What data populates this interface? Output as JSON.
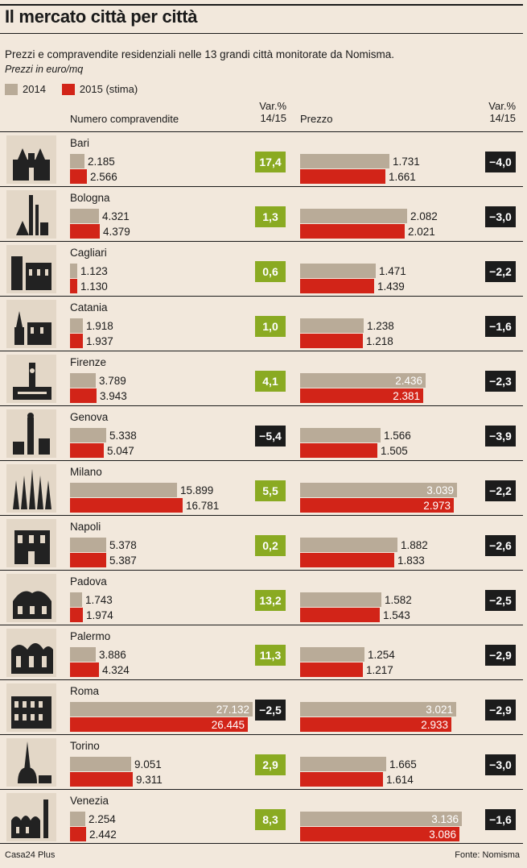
{
  "header": {
    "title": "Il mercato città per città",
    "subtitle": "Prezzi e compravendite residenziali nelle 13 grandi città monitorate da Nomisma.",
    "units": "Prezzi in euro/mq"
  },
  "legend": {
    "items": [
      {
        "label": "2014",
        "color": "#b9ab98"
      },
      {
        "label": "2015 (stima)",
        "color": "#d22418"
      }
    ]
  },
  "columns": {
    "sales": "Numero compravendite",
    "price": "Prezzo",
    "var_line1": "Var.%",
    "var_line2": "14/15"
  },
  "chart_data": {
    "type": "bar",
    "title": "Il mercato città per città",
    "categories": [
      "Bari",
      "Bologna",
      "Cagliari",
      "Catania",
      "Firenze",
      "Genova",
      "Milano",
      "Napoli",
      "Padova",
      "Palermo",
      "Roma",
      "Torino",
      "Venezia"
    ],
    "panels": [
      {
        "name": "Numero compravendite",
        "series": [
          {
            "name": "2014",
            "values": [
              2185,
              4321,
              1123,
              1918,
              3789,
              5338,
              15899,
              5378,
              1743,
              3886,
              27132,
              9051,
              2254
            ],
            "labels": [
              "2.185",
              "4.321",
              "1.123",
              "1.918",
              "3.789",
              "5.338",
              "15.899",
              "5.378",
              "1.743",
              "3.886",
              "27.132",
              "9.051",
              "2.254"
            ]
          },
          {
            "name": "2015 (stima)",
            "values": [
              2566,
              4379,
              1130,
              1937,
              3943,
              5047,
              16781,
              5387,
              1974,
              4324,
              26445,
              9311,
              2442
            ],
            "labels": [
              "2.566",
              "4.379",
              "1.130",
              "1.937",
              "3.943",
              "5.047",
              "16.781",
              "5.387",
              "1.974",
              "4.324",
              "26.445",
              "9.311",
              "2.442"
            ]
          }
        ],
        "var_pct": [
          17.4,
          1.3,
          0.6,
          1.0,
          4.1,
          -5.4,
          5.5,
          0.2,
          13.2,
          11.3,
          -2.5,
          2.9,
          8.3
        ],
        "var_labels": [
          "17,4",
          "1,3",
          "0,6",
          "1,0",
          "4,1",
          "−5,4",
          "5,5",
          "0,2",
          "13,2",
          "11,3",
          "−2,5",
          "2,9",
          "8,3"
        ]
      },
      {
        "name": "Prezzo",
        "unit": "euro/mq",
        "series": [
          {
            "name": "2014",
            "values": [
              1731,
              2082,
              1471,
              1238,
              2436,
              1566,
              3039,
              1882,
              1582,
              1254,
              3021,
              1665,
              3136
            ],
            "labels": [
              "1.731",
              "2.082",
              "1.471",
              "1.238",
              "2.436",
              "1.566",
              "3.039",
              "1.882",
              "1.582",
              "1.254",
              "3.021",
              "1.665",
              "3.136"
            ]
          },
          {
            "name": "2015 (stima)",
            "values": [
              1661,
              2021,
              1439,
              1218,
              2381,
              1505,
              2973,
              1833,
              1543,
              1217,
              2933,
              1614,
              3086
            ],
            "labels": [
              "1.661",
              "2.021",
              "1.439",
              "1.218",
              "2.381",
              "1.505",
              "2.973",
              "1.833",
              "1.543",
              "1.217",
              "2.933",
              "1.614",
              "3.086"
            ]
          }
        ],
        "var_pct": [
          -4.0,
          -3.0,
          -2.2,
          -1.6,
          -2.3,
          -3.9,
          -2.2,
          -2.6,
          -2.5,
          -2.9,
          -2.9,
          -3.0,
          -1.6
        ],
        "var_labels": [
          "−4,0",
          "−3,0",
          "−2,2",
          "−1,6",
          "−2,3",
          "−3,9",
          "−2,2",
          "−2,6",
          "−2,5",
          "−2,9",
          "−2,9",
          "−3,0",
          "−1,6"
        ]
      }
    ],
    "colors": {
      "y2014": "#b9ab98",
      "y2015": "#d22418",
      "positive": "#8aaa22",
      "negative": "#1c1c1c"
    }
  },
  "footer": {
    "left": "Casa24 Plus",
    "right": "Fonte: Nomisma"
  }
}
